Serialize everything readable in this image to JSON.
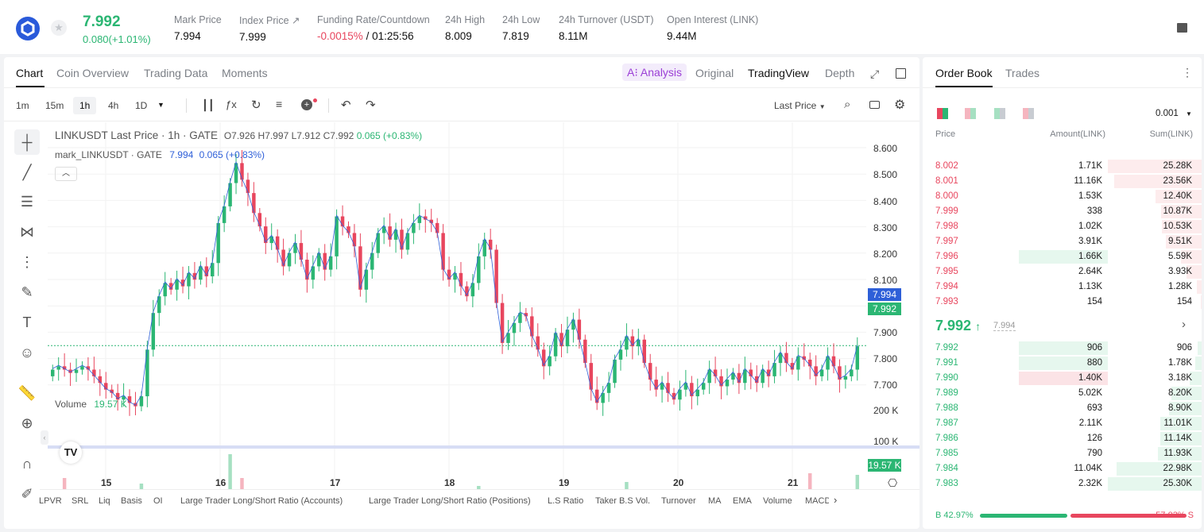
{
  "ticker": {
    "last_price": "7.992",
    "change": "0.080(+1.01%)",
    "stats": [
      {
        "label": "Mark Price",
        "value": "7.994"
      },
      {
        "label": "Index Price ↗",
        "value": "7.999"
      },
      {
        "label": "Funding Rate/Countdown",
        "value_neg": "-0.0015%",
        "value": "/ 01:25:56"
      },
      {
        "label": "24h High",
        "value": "8.009"
      },
      {
        "label": "24h Low",
        "value": "7.819"
      },
      {
        "label": "24h Turnover (USDT)",
        "value": "8.11M"
      },
      {
        "label": "Open Interest (LINK)",
        "value": "9.44M"
      }
    ]
  },
  "chart_tabs": [
    "Chart",
    "Coin Overview",
    "Trading Data",
    "Moments"
  ],
  "view_tabs": {
    "ai": "A⁝ Analysis",
    "original": "Original",
    "tradingview": "TradingView",
    "depth": "Depth"
  },
  "intervals": [
    "1m",
    "15m",
    "1h",
    "4h",
    "1D"
  ],
  "price_type": "Last Price",
  "legend": {
    "symbol": "LINKUSDT Last Price · 1h · GATE",
    "o": "O7.926",
    "h": "H7.997",
    "l": "L7.912",
    "c": "C7.992",
    "chg": "0.065 (+0.83%)",
    "mark": "mark_LINKUSDT · GATE",
    "mark_val": "7.994",
    "mark_chg": "0.065 (+0.83%)",
    "volume_label": "Volume",
    "volume_val": "19.57 K"
  },
  "price_tags": {
    "mark": "7.994",
    "last": "7.992",
    "volume": "19.57 K"
  },
  "indicators": [
    "LPVR",
    "SRL",
    "Liq",
    "Basis",
    "OI",
    "Large Trader Long/Short Ratio (Accounts)",
    "Large Trader Long/Short Ratio (Positions)",
    "L.S Ratio",
    "Taker B.S Vol.",
    "Turnover",
    "MA",
    "EMA",
    "Volume",
    "MACD"
  ],
  "chart_data": {
    "type": "candlestick",
    "price_axis": [
      "8.600",
      "8.500",
      "8.400",
      "8.300",
      "8.200",
      "8.100",
      "7.900",
      "7.800",
      "7.700"
    ],
    "ylim": [
      7.69,
      8.61
    ],
    "volume_axis": [
      "200 K",
      "100 K"
    ],
    "x_ticks": [
      "15",
      "16",
      "17",
      "18",
      "19",
      "20",
      "21"
    ],
    "close_path": [
      7.92,
      7.93,
      7.92,
      7.91,
      7.92,
      7.93,
      7.92,
      7.9,
      7.88,
      7.86,
      7.85,
      7.83,
      7.84,
      7.82,
      7.81,
      7.84,
      7.98,
      8.09,
      8.14,
      8.18,
      8.16,
      8.19,
      8.17,
      8.21,
      8.19,
      8.23,
      8.2,
      8.24,
      8.36,
      8.41,
      8.48,
      8.54,
      8.49,
      8.45,
      8.39,
      8.35,
      8.3,
      8.32,
      8.28,
      8.23,
      8.27,
      8.3,
      8.25,
      8.19,
      8.23,
      8.27,
      8.22,
      8.26,
      8.38,
      8.35,
      8.33,
      8.29,
      8.16,
      8.22,
      8.27,
      8.33,
      8.35,
      8.31,
      8.34,
      8.28,
      8.33,
      8.36,
      8.38,
      8.37,
      8.36,
      8.33,
      8.22,
      8.19,
      8.21,
      8.17,
      8.14,
      8.18,
      8.26,
      8.31,
      8.28,
      8.12,
      8.0,
      8.03,
      8.06,
      8.09,
      8.08,
      8.02,
      7.98,
      7.93,
      7.96,
      8.03,
      7.99,
      8.04,
      8.07,
      8.01,
      7.94,
      7.86,
      7.82,
      7.85,
      7.88,
      7.95,
      7.98,
      8.02,
      7.99,
      8.01,
      7.94,
      7.89,
      7.86,
      7.88,
      7.85,
      7.83,
      7.86,
      7.88,
      7.84,
      7.86,
      7.88,
      7.92,
      7.9,
      7.87,
      7.89,
      7.91,
      7.88,
      7.92,
      7.9,
      7.88,
      7.92,
      7.9,
      7.94,
      7.97,
      7.94,
      7.92,
      7.96,
      7.95,
      7.93,
      7.9,
      7.92,
      7.96,
      7.93,
      7.89,
      7.9,
      7.92,
      7.99
    ],
    "volume_peaks": [
      2,
      15,
      32,
      58,
      72,
      97,
      128,
      136
    ]
  },
  "orderbook": {
    "tabs": [
      "Order Book",
      "Trades"
    ],
    "precision": "0.001",
    "headers": {
      "price": "Price",
      "amount": "Amount(LINK)",
      "sum": "Sum(LINK)"
    },
    "asks": [
      {
        "p": "8.002",
        "a": "1.71K",
        "s": "25.28K",
        "depth": 1.0
      },
      {
        "p": "8.001",
        "a": "11.16K",
        "s": "23.56K",
        "depth": 0.93,
        "big": 0.0
      },
      {
        "p": "8.000",
        "a": "1.53K",
        "s": "12.40K",
        "depth": 0.49
      },
      {
        "p": "7.999",
        "a": "338",
        "s": "10.87K",
        "depth": 0.43
      },
      {
        "p": "7.998",
        "a": "1.02K",
        "s": "10.53K",
        "depth": 0.42
      },
      {
        "p": "7.997",
        "a": "3.91K",
        "s": "9.51K",
        "depth": 0.38
      },
      {
        "p": "7.996",
        "a": "1.66K",
        "s": "5.59K",
        "depth": 0.22,
        "hl": true
      },
      {
        "p": "7.995",
        "a": "2.64K",
        "s": "3.93K",
        "depth": 0.16
      },
      {
        "p": "7.994",
        "a": "1.13K",
        "s": "1.28K",
        "depth": 0.05
      },
      {
        "p": "7.993",
        "a": "154",
        "s": "154",
        "depth": 0.01
      }
    ],
    "mid": {
      "price": "7.992",
      "mark": "7.994"
    },
    "bids": [
      {
        "p": "7.992",
        "a": "906",
        "s": "906",
        "depth": 0.04,
        "hl": "g"
      },
      {
        "p": "7.991",
        "a": "880",
        "s": "1.78K",
        "depth": 0.07,
        "hl": "g"
      },
      {
        "p": "7.990",
        "a": "1.40K",
        "s": "3.18K",
        "depth": 0.13,
        "hl": "r"
      },
      {
        "p": "7.989",
        "a": "5.02K",
        "s": "8.20K",
        "depth": 0.32
      },
      {
        "p": "7.988",
        "a": "693",
        "s": "8.90K",
        "depth": 0.35
      },
      {
        "p": "7.987",
        "a": "2.11K",
        "s": "11.01K",
        "depth": 0.44
      },
      {
        "p": "7.986",
        "a": "126",
        "s": "11.14K",
        "depth": 0.44
      },
      {
        "p": "7.985",
        "a": "790",
        "s": "11.93K",
        "depth": 0.47
      },
      {
        "p": "7.984",
        "a": "11.04K",
        "s": "22.98K",
        "depth": 0.91
      },
      {
        "p": "7.983",
        "a": "2.32K",
        "s": "25.30K",
        "depth": 1.0
      }
    ],
    "ratio": {
      "buy_label": "B",
      "buy": "42.97%",
      "sell": "57.03%",
      "sell_label": "S",
      "buy_frac": 0.4297
    }
  }
}
